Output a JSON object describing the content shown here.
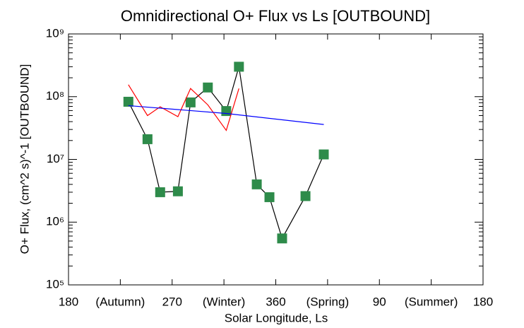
{
  "chart_data": {
    "type": "line",
    "title": "Omnidirectional O+ Flux vs Ls [OUTBOUND]",
    "x_label": "Solar Longitude, Ls",
    "y_label": "O+ Flux, (cm^2 s)^-1 [OUTBOUND]",
    "log_y": true,
    "xlim": [
      180,
      540
    ],
    "ylim": [
      100000,
      1000000000
    ],
    "xticks": [
      180,
      {
        "value": 225,
        "label": "(Autumn)"
      },
      270,
      {
        "value": 315,
        "label": "(Winter)"
      },
      360,
      {
        "value": 405,
        "label": "(Spring)"
      },
      {
        "value": 450,
        "label": "90"
      },
      {
        "value": 495,
        "label": "(Summer)"
      },
      {
        "value": 540,
        "label": "180"
      }
    ],
    "yticks": [
      {
        "value": 100000,
        "label": "10⁵"
      },
      {
        "value": 1000000,
        "label": "10⁶"
      },
      {
        "value": 10000000,
        "label": "10⁷"
      },
      {
        "value": 100000000,
        "label": "10⁸"
      },
      {
        "value": 1000000000,
        "label": "10⁹"
      }
    ],
    "series": [
      {
        "color": "#000000",
        "marker_color": "#2e8b4a",
        "markers": true,
        "x": [
          232,
          248.6,
          259.6,
          275,
          286,
          301,
          317,
          328,
          343.5,
          354.5,
          365.5,
          385.8,
          401.7
        ],
        "values": [
          83000000,
          21000000,
          3000000,
          3100000,
          81000000,
          140000000,
          59000000,
          300000000,
          4000000,
          2500000,
          550000,
          2600000,
          12000000
        ]
      },
      {
        "color": "#ff0000",
        "markers": false,
        "x": [
          232,
          248.6,
          259.6,
          275,
          286,
          301,
          317,
          328
        ],
        "values": [
          155000000,
          50000000,
          69000000,
          48000000,
          135000000,
          74000000,
          29000000,
          135000000
        ]
      },
      {
        "color": "#0000ff",
        "markers": false,
        "x": [
          232,
          317,
          401.7
        ],
        "values": [
          72000000,
          54000000,
          36000000
        ]
      }
    ]
  }
}
